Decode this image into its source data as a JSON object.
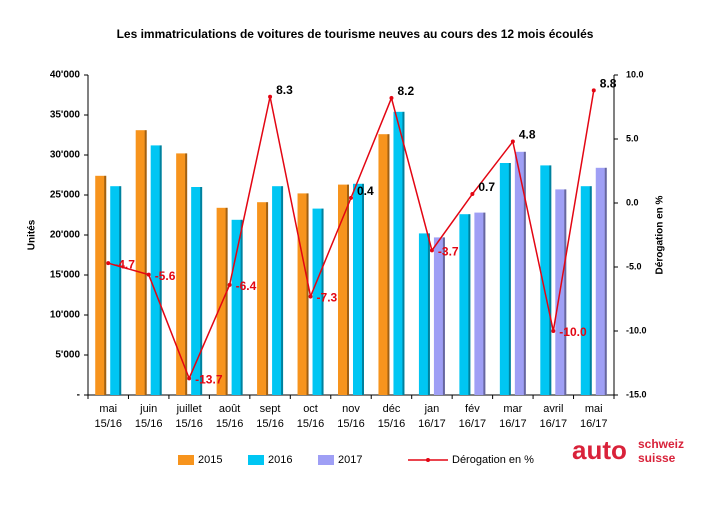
{
  "chart_data": {
    "type": "bar-line",
    "title": "Les immatriculations de voitures de tourisme neuves au cours des 12 mois écoulés",
    "ylabel": "Unités",
    "y2label": "Dérogation en %",
    "categories": [
      [
        "mai",
        "15/16"
      ],
      [
        "juin",
        "15/16"
      ],
      [
        "juillet",
        "15/16"
      ],
      [
        "août",
        "15/16"
      ],
      [
        "sept",
        "15/16"
      ],
      [
        "oct",
        "15/16"
      ],
      [
        "nov",
        "15/16"
      ],
      [
        "déc",
        "15/16"
      ],
      [
        "jan",
        "16/17"
      ],
      [
        "fév",
        "16/17"
      ],
      [
        "mar",
        "16/17"
      ],
      [
        "avril",
        "16/17"
      ],
      [
        "mai",
        "16/17"
      ]
    ],
    "series": [
      {
        "name": "2015",
        "color": "#f7941d",
        "values": [
          27400,
          33100,
          30200,
          23400,
          24100,
          25200,
          26300,
          32600,
          null,
          null,
          null,
          null,
          null
        ]
      },
      {
        "name": "2016",
        "color": "#00c6f3",
        "values": [
          26100,
          31200,
          26000,
          21900,
          26100,
          23300,
          26400,
          35400,
          20200,
          22600,
          29000,
          28700,
          26100
        ]
      },
      {
        "name": "2017",
        "color": "#9f9ff5",
        "values": [
          null,
          null,
          null,
          null,
          null,
          null,
          null,
          null,
          19700,
          22800,
          30400,
          25700,
          28400
        ]
      },
      {
        "name": "Dérogation en %",
        "color": "#e30613",
        "type": "line",
        "axis": "y2",
        "values": [
          -4.7,
          -5.6,
          -13.7,
          -6.4,
          8.3,
          -7.3,
          0.4,
          8.2,
          -3.7,
          0.7,
          4.8,
          -10.0,
          8.8
        ],
        "value_labels": [
          "-4.7",
          "-5.6",
          "-13.7",
          "-6.4",
          "8.3",
          "-7.3",
          "0.4",
          "8.2",
          "-3.7",
          "0.7",
          "4.8",
          "-10.0",
          "8.8"
        ]
      }
    ],
    "ylim": [
      0,
      40000
    ],
    "yticks": [
      {
        "value": 0,
        "label": "-"
      },
      {
        "value": 5000,
        "label": "5'000"
      },
      {
        "value": 10000,
        "label": "10'000"
      },
      {
        "value": 15000,
        "label": "15'000"
      },
      {
        "value": 20000,
        "label": "20'000"
      },
      {
        "value": 25000,
        "label": "25'000"
      },
      {
        "value": 30000,
        "label": "30'000"
      },
      {
        "value": 35000,
        "label": "35'000"
      },
      {
        "value": 40000,
        "label": "40'000"
      }
    ],
    "y2lim": [
      -15,
      10
    ],
    "y2ticks": [
      {
        "value": -15,
        "label": "-15.0"
      },
      {
        "value": -10,
        "label": "-10.0"
      },
      {
        "value": -5,
        "label": "-5.0"
      },
      {
        "value": 0,
        "label": "0.0"
      },
      {
        "value": 5,
        "label": "5.0"
      },
      {
        "value": 10,
        "label": "10.0"
      }
    ],
    "grid": false
  },
  "logo": {
    "main": "auto",
    "line1": "schweiz",
    "line2": "suisse"
  }
}
